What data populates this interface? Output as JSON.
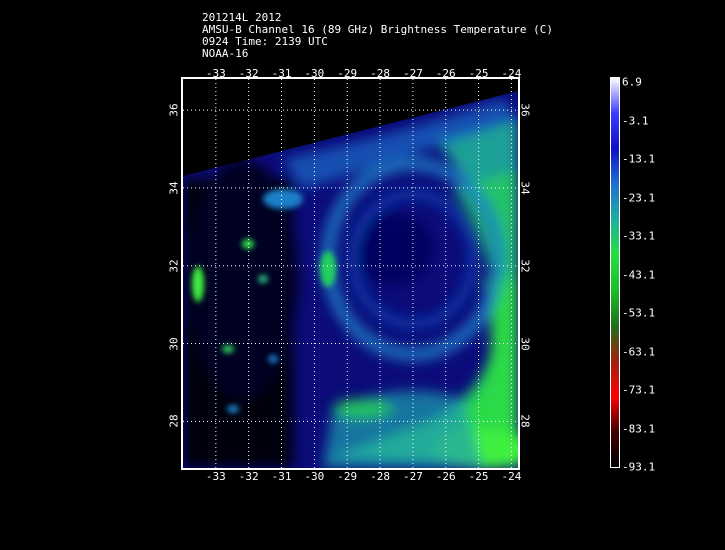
{
  "header": {
    "line1": "201214L 2012",
    "line2": "AMSU-B Channel 16 (89 GHz) Brightness Temperature (C)",
    "line3": "0924 Time: 2139 UTC",
    "line4": "NOAA-16"
  },
  "map": {
    "lon_ticks": [
      "-33",
      "-32",
      "-31",
      "-30",
      "-29",
      "-28",
      "-27",
      "-26",
      "-25",
      "-24"
    ],
    "lat_ticks": [
      "36",
      "34",
      "32",
      "30",
      "28"
    ],
    "lon_range": [
      -34,
      -23.8
    ],
    "lat_range": [
      26.8,
      36.8
    ],
    "gridlines": true
  },
  "colorbar": {
    "labels": [
      "6.9",
      "-3.1",
      "-13.1",
      "-23.1",
      "-33.1",
      "-43.1",
      "-53.1",
      "-63.1",
      "-73.1",
      "-83.1",
      "-93.1"
    ],
    "colors": [
      "#ffffff",
      "#3b3bff",
      "#1010c8",
      "#1f6fd0",
      "#19b0a0",
      "#22e040",
      "#16c025",
      "#207020",
      "#a02010",
      "#ff0000",
      "#400000",
      "#000000"
    ]
  }
}
